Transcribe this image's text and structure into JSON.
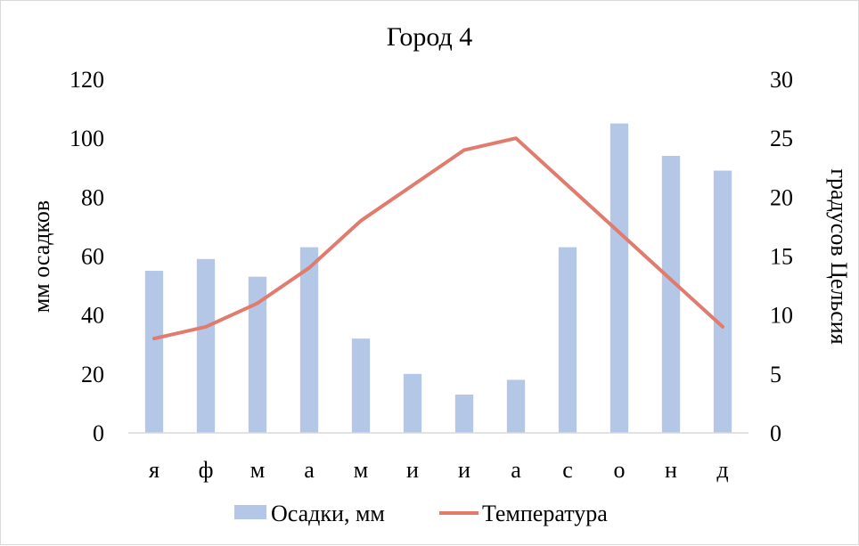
{
  "chart_data": {
    "type": "bar",
    "title": "Город 4",
    "categories": [
      "я",
      "ф",
      "м",
      "а",
      "м",
      "и",
      "и",
      "а",
      "с",
      "о",
      "н",
      "д"
    ],
    "series": [
      {
        "name": "Осадки, мм",
        "type": "bar",
        "axis": "left",
        "color": "#b4c7e7",
        "values": [
          55,
          59,
          53,
          63,
          32,
          20,
          13,
          18,
          63,
          105,
          94,
          89
        ]
      },
      {
        "name": "Температура",
        "type": "line",
        "axis": "right",
        "color": "#e07b6e",
        "values": [
          8,
          9,
          11,
          14,
          18,
          21,
          24,
          25,
          21,
          17,
          13,
          9
        ]
      }
    ],
    "ylabel": "мм осадков",
    "ylabel_right": "градусов Цельсия",
    "ylim": [
      0,
      120
    ],
    "ylim_right": [
      0,
      30
    ],
    "yticks": [
      "0",
      "20",
      "40",
      "60",
      "80",
      "100",
      "120"
    ],
    "yticks_right": [
      "0",
      "5",
      "10",
      "15",
      "20",
      "25",
      "30"
    ],
    "grid": false,
    "legend_position": "bottom"
  }
}
